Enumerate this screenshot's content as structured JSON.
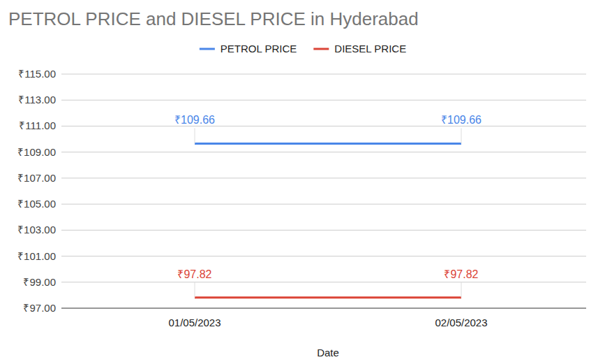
{
  "chart_data": {
    "type": "line",
    "title": "PETROL PRICE and DIESEL PRICE in Hyderabad",
    "x_label": "Date",
    "categories": [
      "01/05/2023",
      "02/05/2023"
    ],
    "series": [
      {
        "name": "PETROL PRICE",
        "color": "#4a86e8",
        "values": [
          109.66,
          109.66
        ],
        "value_labels": [
          "₹109.66",
          "₹109.66"
        ]
      },
      {
        "name": "DIESEL PRICE",
        "color": "#db4437",
        "values": [
          97.82,
          97.82
        ],
        "value_labels": [
          "₹97.82",
          "₹97.82"
        ]
      }
    ],
    "ylim": [
      97,
      115
    ],
    "yticks": [
      {
        "value": 97,
        "label": "₹97.00"
      },
      {
        "value": 99,
        "label": "₹99.00"
      },
      {
        "value": 101,
        "label": "₹101.00"
      },
      {
        "value": 103,
        "label": "₹103.00"
      },
      {
        "value": 105,
        "label": "₹105.00"
      },
      {
        "value": 107,
        "label": "₹107.00"
      },
      {
        "value": 109,
        "label": "₹109.00"
      },
      {
        "value": 111,
        "label": "₹111.00"
      },
      {
        "value": 113,
        "label": "₹113.00"
      },
      {
        "value": 115,
        "label": "₹115.00"
      }
    ],
    "grid": true,
    "legend": "top",
    "data_labels": true
  }
}
